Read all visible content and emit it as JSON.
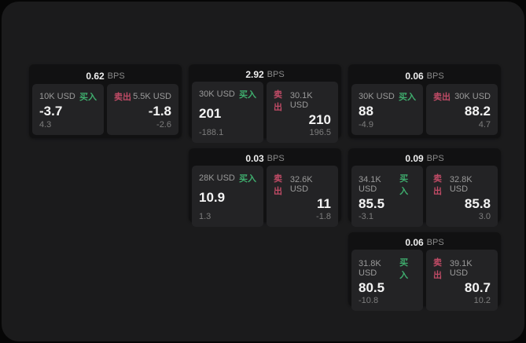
{
  "labels": {
    "bps": "BPS",
    "buy": "买入",
    "sell": "卖出"
  },
  "colors": {
    "page_bg": "#060606",
    "panel_bg": "#1b1b1c",
    "card_bg": "#111112",
    "tile_bg": "#232325",
    "buy_green": "#3fae6e",
    "sell_red": "#c04b66",
    "price_white": "#f4f4f4",
    "muted_gray": "#9a9a9a"
  },
  "cards": [
    {
      "row": 1,
      "col": 1,
      "bps": "0.62",
      "buy": {
        "size": "10K USD",
        "price": "-3.7",
        "change": "4.3"
      },
      "sell": {
        "size": "5.5K USD",
        "price": "-1.8",
        "change": "-2.6"
      }
    },
    {
      "row": 1,
      "col": 2,
      "bps": "2.92",
      "buy": {
        "size": "30K USD",
        "price": "201",
        "change": "-188.1"
      },
      "sell": {
        "size": "30.1K USD",
        "price": "210",
        "change": "196.5"
      }
    },
    {
      "row": 1,
      "col": 3,
      "bps": "0.06",
      "buy": {
        "size": "30K USD",
        "price": "88",
        "change": "-4.9"
      },
      "sell": {
        "size": "30K USD",
        "price": "88.2",
        "change": "4.7"
      }
    },
    {
      "row": 2,
      "col": 2,
      "bps": "0.03",
      "buy": {
        "size": "28K USD",
        "price": "10.9",
        "change": "1.3"
      },
      "sell": {
        "size": "32.6K USD",
        "price": "11",
        "change": "-1.8"
      }
    },
    {
      "row": 2,
      "col": 3,
      "bps": "0.09",
      "buy": {
        "size": "34.1K USD",
        "price": "85.5",
        "change": "-3.1"
      },
      "sell": {
        "size": "32.8K USD",
        "price": "85.8",
        "change": "3.0"
      }
    },
    {
      "row": 3,
      "col": 3,
      "bps": "0.06",
      "buy": {
        "size": "31.8K USD",
        "price": "80.5",
        "change": "-10.8"
      },
      "sell": {
        "size": "39.1K USD",
        "price": "80.7",
        "change": "10.2"
      }
    }
  ]
}
